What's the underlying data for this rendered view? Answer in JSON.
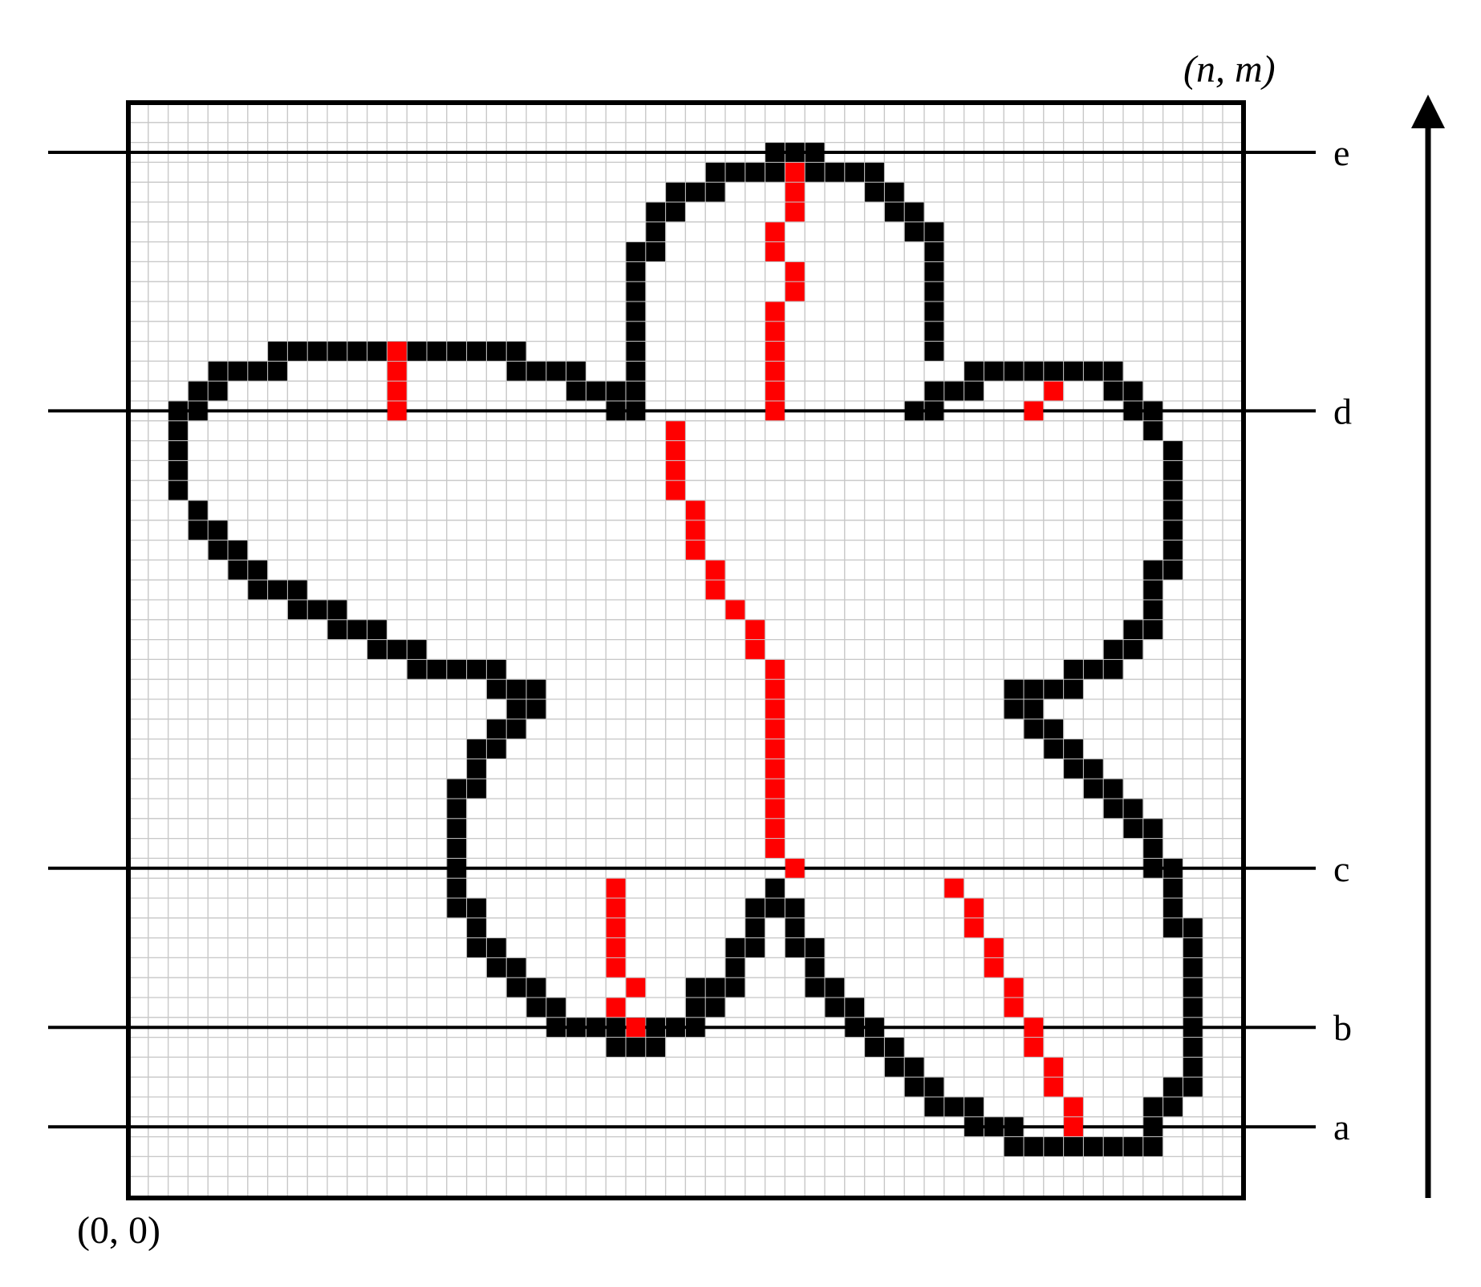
{
  "grid": {
    "cols": 56,
    "rows": 55
  },
  "corner_labels": {
    "origin": "(0, 0)",
    "top_right": "(n, m)"
  },
  "colors": {
    "background": "#ffffff",
    "grid_line": "#c8c8c8",
    "shape_fill": "#e6e6e6",
    "boundary": "#000000",
    "path": "#ff0000",
    "frame": "#000000"
  },
  "scan_lines": [
    {
      "label": "e",
      "row": 52.5
    },
    {
      "label": "d",
      "row": 39.5
    },
    {
      "label": "c",
      "row": 16.5
    },
    {
      "label": "b",
      "row": 8.5
    },
    {
      "label": "a",
      "row": 3.5
    }
  ],
  "arrow": {
    "direction": "up"
  },
  "boundary_runs": [
    [
      52,
      32,
      34
    ],
    [
      51,
      29,
      32
    ],
    [
      51,
      34,
      37
    ],
    [
      50,
      27,
      29
    ],
    [
      50,
      37,
      38
    ],
    [
      49,
      26,
      27
    ],
    [
      49,
      38,
      39
    ],
    [
      48,
      26,
      26
    ],
    [
      48,
      39,
      40
    ],
    [
      47,
      25,
      26
    ],
    [
      47,
      40,
      40
    ],
    [
      46,
      25,
      25
    ],
    [
      46,
      40,
      40
    ],
    [
      45,
      25,
      25
    ],
    [
      45,
      40,
      40
    ],
    [
      44,
      25,
      25
    ],
    [
      44,
      40,
      40
    ],
    [
      43,
      25,
      25
    ],
    [
      43,
      40,
      40
    ],
    [
      42,
      7,
      19
    ],
    [
      42,
      25,
      25
    ],
    [
      42,
      40,
      40
    ],
    [
      41,
      4,
      7
    ],
    [
      41,
      19,
      22
    ],
    [
      41,
      25,
      25
    ],
    [
      41,
      42,
      49
    ],
    [
      40,
      3,
      4
    ],
    [
      40,
      22,
      25
    ],
    [
      40,
      40,
      42
    ],
    [
      40,
      49,
      50
    ],
    [
      39,
      2,
      3
    ],
    [
      39,
      24,
      25
    ],
    [
      39,
      39,
      40
    ],
    [
      39,
      50,
      51
    ],
    [
      38,
      2,
      2
    ],
    [
      38,
      51,
      51
    ],
    [
      37,
      2,
      2
    ],
    [
      37,
      52,
      52
    ],
    [
      36,
      2,
      2
    ],
    [
      36,
      52,
      52
    ],
    [
      35,
      2,
      2
    ],
    [
      35,
      52,
      52
    ],
    [
      34,
      3,
      3
    ],
    [
      34,
      52,
      52
    ],
    [
      33,
      3,
      4
    ],
    [
      33,
      52,
      52
    ],
    [
      32,
      4,
      5
    ],
    [
      32,
      52,
      52
    ],
    [
      31,
      5,
      6
    ],
    [
      31,
      51,
      52
    ],
    [
      30,
      6,
      8
    ],
    [
      30,
      51,
      51
    ],
    [
      29,
      8,
      10
    ],
    [
      29,
      51,
      51
    ],
    [
      28,
      10,
      12
    ],
    [
      28,
      50,
      51
    ],
    [
      27,
      12,
      14
    ],
    [
      27,
      49,
      50
    ],
    [
      26,
      14,
      18
    ],
    [
      26,
      47,
      49
    ],
    [
      25,
      18,
      20
    ],
    [
      25,
      44,
      47
    ],
    [
      24,
      19,
      20
    ],
    [
      24,
      44,
      45
    ],
    [
      23,
      18,
      19
    ],
    [
      23,
      45,
      46
    ],
    [
      22,
      17,
      18
    ],
    [
      22,
      46,
      47
    ],
    [
      21,
      17,
      17
    ],
    [
      21,
      47,
      48
    ],
    [
      20,
      16,
      17
    ],
    [
      20,
      48,
      49
    ],
    [
      19,
      16,
      16
    ],
    [
      19,
      49,
      50
    ],
    [
      18,
      16,
      16
    ],
    [
      18,
      50,
      51
    ],
    [
      17,
      16,
      16
    ],
    [
      17,
      51,
      51
    ],
    [
      16,
      16,
      16
    ],
    [
      16,
      51,
      52
    ],
    [
      15,
      16,
      16
    ],
    [
      15,
      32,
      32
    ],
    [
      15,
      52,
      52
    ],
    [
      14,
      16,
      17
    ],
    [
      14,
      31,
      33
    ],
    [
      14,
      52,
      52
    ],
    [
      13,
      17,
      17
    ],
    [
      13,
      31,
      31
    ],
    [
      13,
      33,
      33
    ],
    [
      13,
      52,
      53
    ],
    [
      12,
      17,
      18
    ],
    [
      12,
      30,
      31
    ],
    [
      12,
      33,
      34
    ],
    [
      12,
      53,
      53
    ],
    [
      11,
      18,
      19
    ],
    [
      11,
      30,
      30
    ],
    [
      11,
      34,
      34
    ],
    [
      11,
      53,
      53
    ],
    [
      10,
      19,
      20
    ],
    [
      10,
      28,
      30
    ],
    [
      10,
      34,
      35
    ],
    [
      10,
      53,
      53
    ],
    [
      9,
      20,
      21
    ],
    [
      9,
      28,
      29
    ],
    [
      9,
      35,
      36
    ],
    [
      9,
      53,
      53
    ],
    [
      8,
      21,
      25
    ],
    [
      8,
      26,
      28
    ],
    [
      8,
      36,
      37
    ],
    [
      8,
      53,
      53
    ],
    [
      7,
      24,
      26
    ],
    [
      7,
      37,
      38
    ],
    [
      7,
      53,
      53
    ],
    [
      6,
      38,
      39
    ],
    [
      6,
      53,
      53
    ],
    [
      5,
      39,
      40
    ],
    [
      5,
      52,
      53
    ],
    [
      4,
      40,
      42
    ],
    [
      4,
      51,
      52
    ],
    [
      3,
      42,
      44
    ],
    [
      3,
      51,
      51
    ],
    [
      2,
      44,
      51
    ]
  ],
  "path_cells": [
    [
      51,
      33
    ],
    [
      50,
      33
    ],
    [
      49,
      33
    ],
    [
      48,
      32
    ],
    [
      47,
      32
    ],
    [
      46,
      33
    ],
    [
      45,
      33
    ],
    [
      44,
      32
    ],
    [
      43,
      32
    ],
    [
      42,
      32
    ],
    [
      41,
      32
    ],
    [
      40,
      32
    ],
    [
      39,
      32
    ],
    [
      42,
      13
    ],
    [
      41,
      13
    ],
    [
      40,
      13
    ],
    [
      39,
      13
    ],
    [
      40,
      46
    ],
    [
      39,
      45
    ],
    [
      38,
      27
    ],
    [
      37,
      27
    ],
    [
      36,
      27
    ],
    [
      35,
      27
    ],
    [
      34,
      28
    ],
    [
      33,
      28
    ],
    [
      32,
      28
    ],
    [
      31,
      29
    ],
    [
      30,
      29
    ],
    [
      29,
      30
    ],
    [
      28,
      31
    ],
    [
      27,
      31
    ],
    [
      26,
      32
    ],
    [
      25,
      32
    ],
    [
      24,
      32
    ],
    [
      23,
      32
    ],
    [
      22,
      32
    ],
    [
      21,
      32
    ],
    [
      20,
      32
    ],
    [
      19,
      32
    ],
    [
      18,
      32
    ],
    [
      17,
      32
    ],
    [
      16,
      33
    ],
    [
      15,
      24
    ],
    [
      14,
      24
    ],
    [
      13,
      24
    ],
    [
      12,
      24
    ],
    [
      11,
      24
    ],
    [
      10,
      25
    ],
    [
      9,
      24
    ],
    [
      8,
      25
    ],
    [
      15,
      41
    ],
    [
      14,
      42
    ],
    [
      13,
      42
    ],
    [
      12,
      43
    ],
    [
      11,
      43
    ],
    [
      10,
      44
    ],
    [
      9,
      44
    ],
    [
      8,
      45
    ],
    [
      7,
      45
    ],
    [
      6,
      46
    ],
    [
      5,
      46
    ],
    [
      4,
      47
    ],
    [
      3,
      47
    ]
  ]
}
